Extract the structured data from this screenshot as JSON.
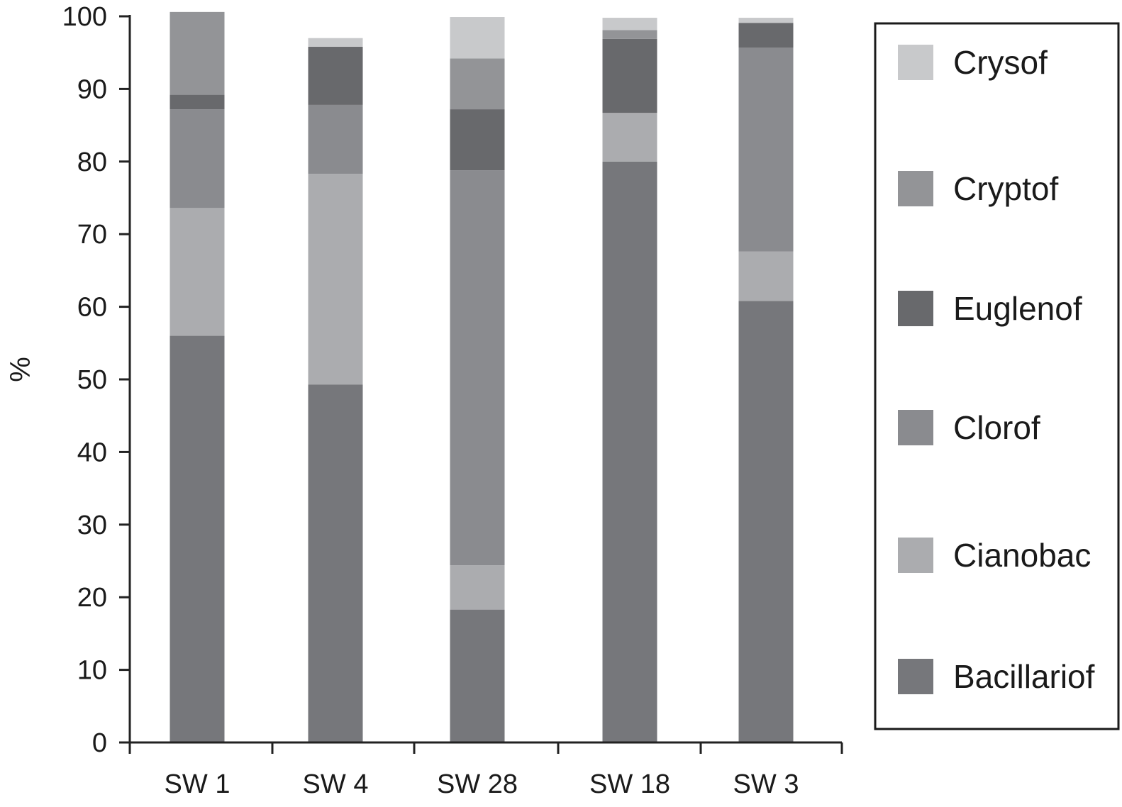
{
  "chart_data": {
    "type": "bar",
    "stacked": true,
    "title": "",
    "xlabel": "",
    "ylabel": "%",
    "ylim": [
      0,
      100
    ],
    "yticks": [
      "0",
      "10",
      "20",
      "30",
      "40",
      "50",
      "60",
      "70",
      "80",
      "90",
      "100"
    ],
    "categories": [
      "SW 1",
      "SW 4",
      "SW 28",
      "SW 18",
      "SW 3"
    ],
    "legend_position": "right",
    "series": [
      {
        "name": "Bacillariof",
        "color": "#76777b",
        "values": [
          56,
          49.3,
          18.3,
          80,
          60.8
        ]
      },
      {
        "name": "Cianobac",
        "color": "#abacaf",
        "values": [
          17.6,
          29,
          6.1,
          6.7,
          6.8
        ]
      },
      {
        "name": "Clorof",
        "color": "#8a8b8f",
        "values": [
          13.6,
          9.5,
          54.4,
          0,
          28.1
        ]
      },
      {
        "name": "Euglenof",
        "color": "#68696c",
        "values": [
          2,
          8,
          8.4,
          10.2,
          3.4
        ]
      },
      {
        "name": "Cryptof",
        "color": "#939497",
        "values": [
          11.4,
          0,
          7,
          1.2,
          0
        ]
      },
      {
        "name": "Crysof",
        "color": "#c8c9cb",
        "values": [
          0,
          1.2,
          5.7,
          1.7,
          0.7
        ]
      }
    ],
    "legend_order": [
      "Crysof",
      "Cryptof",
      "Euglenof",
      "Clorof",
      "Cianobac",
      "Bacillariof"
    ]
  }
}
